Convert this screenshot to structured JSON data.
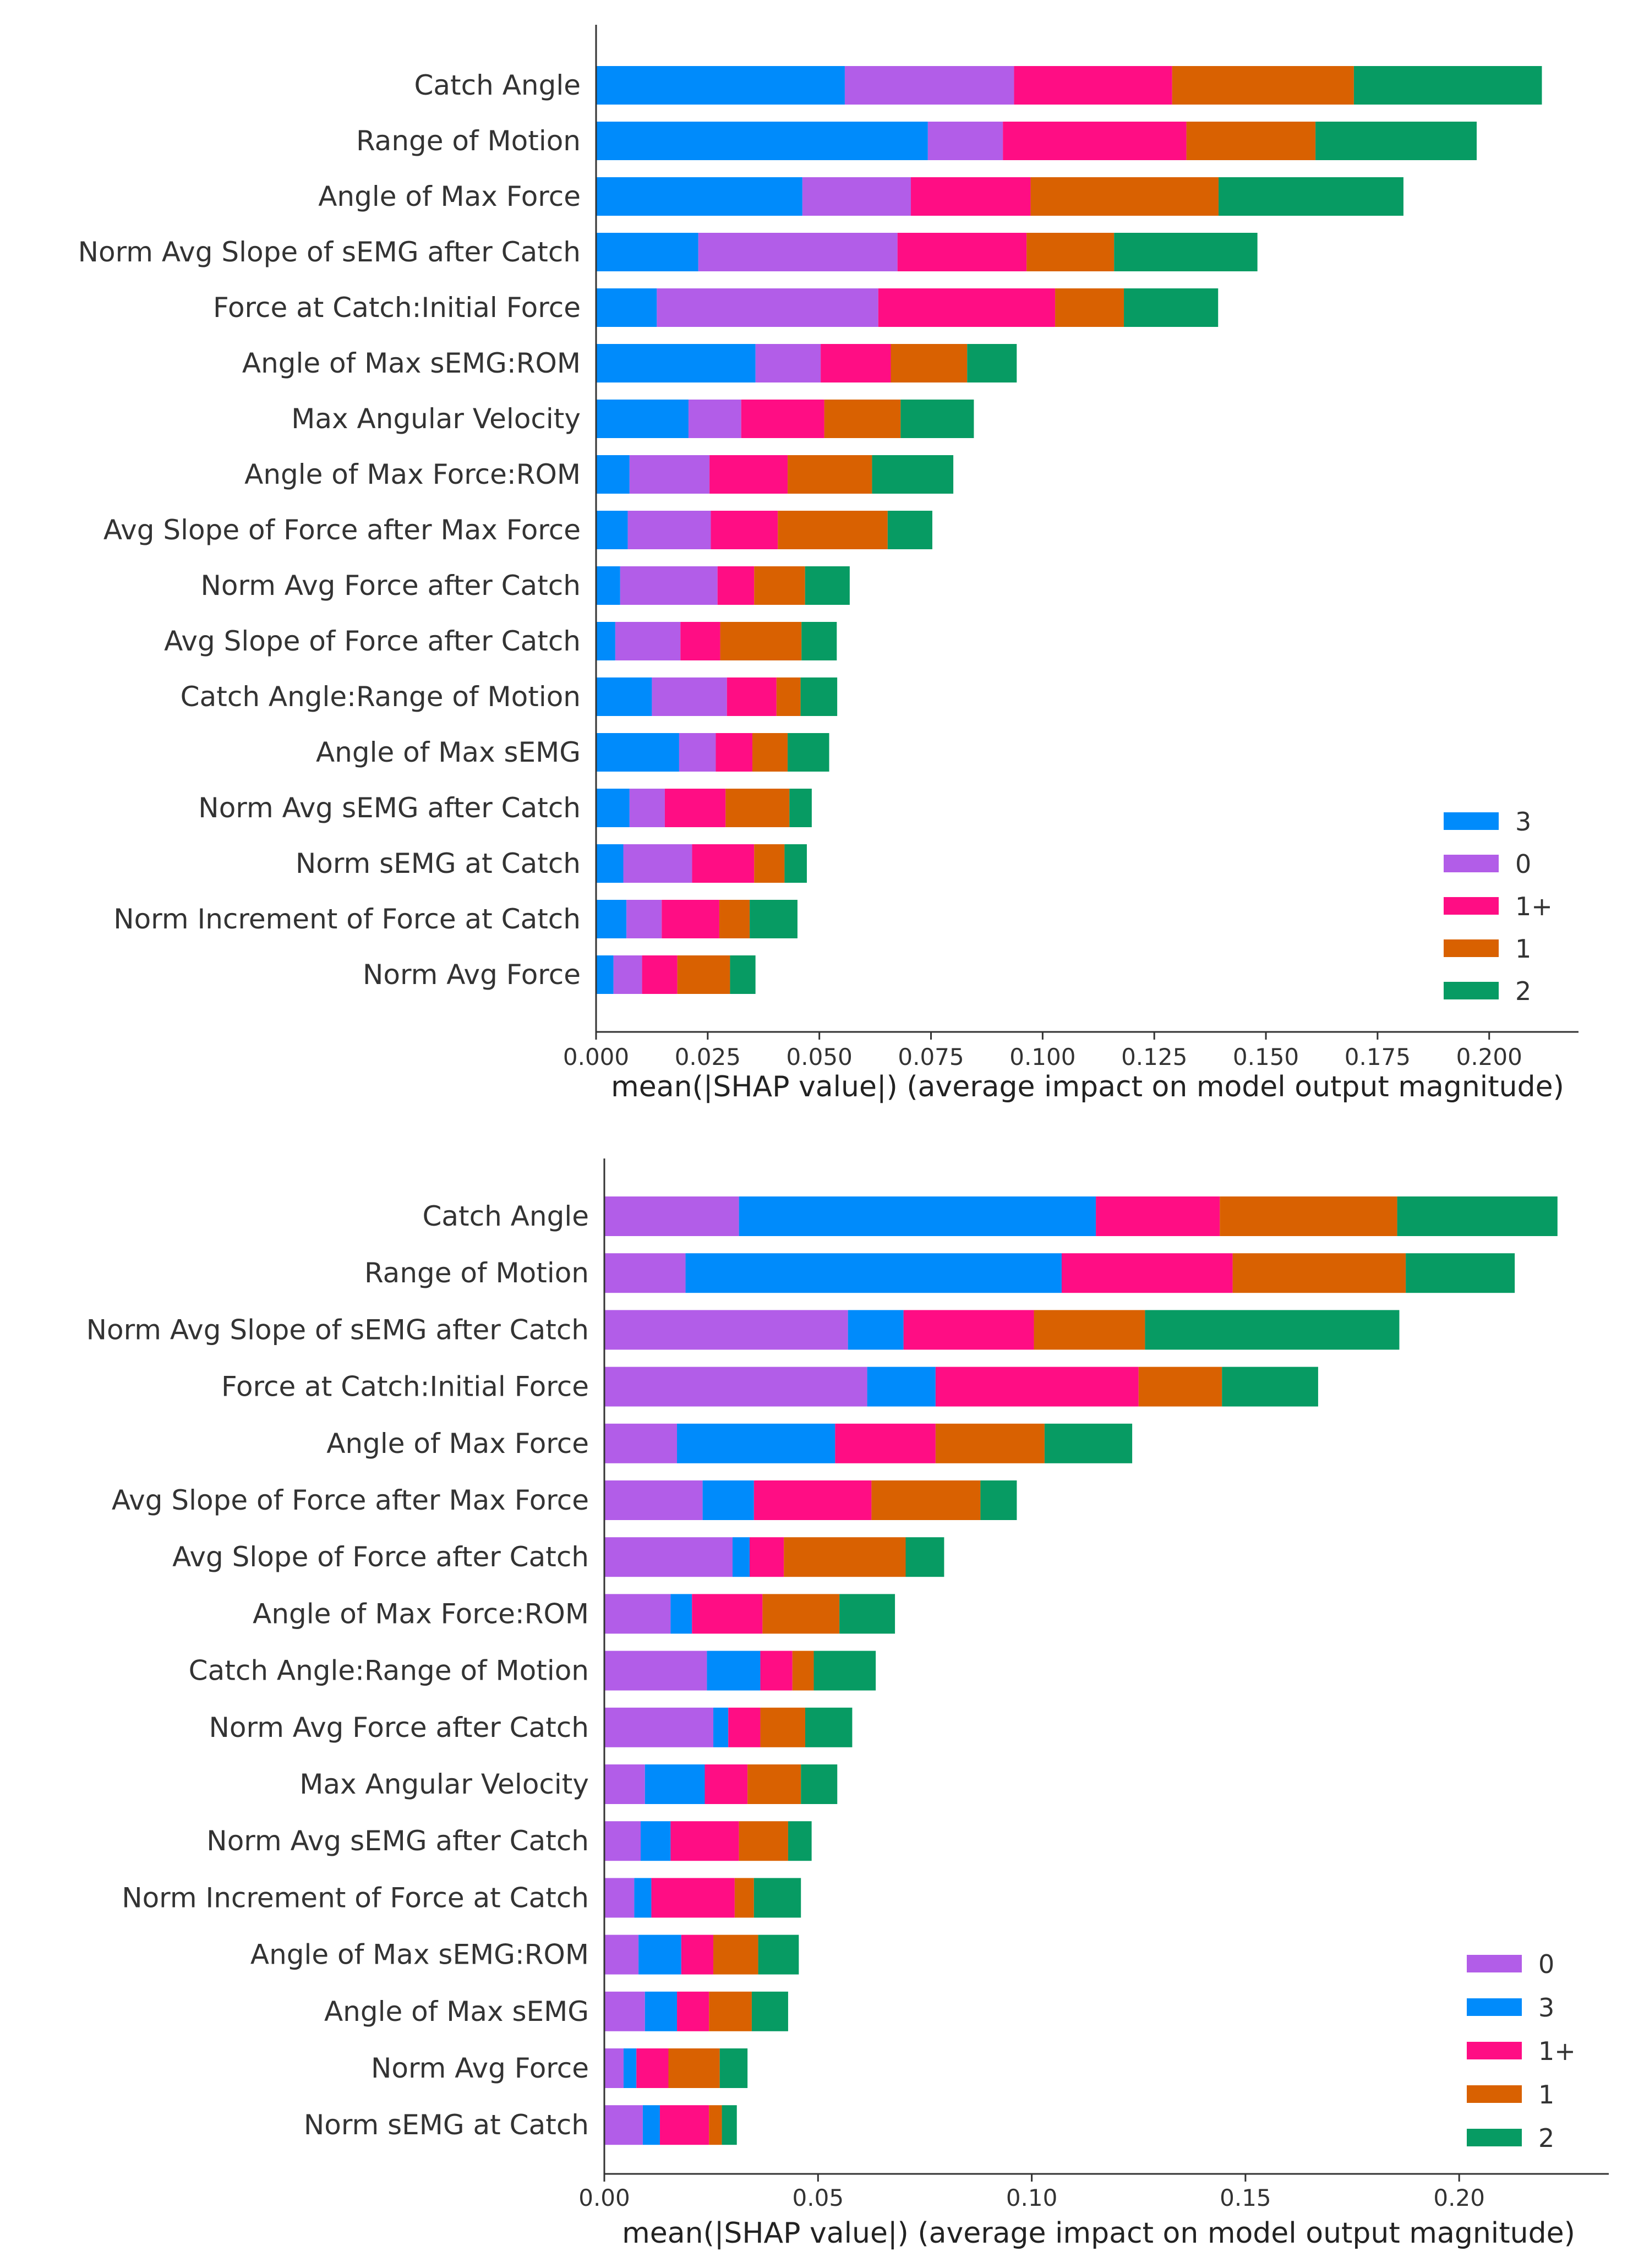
{
  "colors": {
    "3": "#008bfb",
    "0": "#b25de8",
    "1+": "#ff0d84",
    "1": "#d96101",
    "2": "#079b63"
  },
  "chart_data": [
    {
      "type": "bar",
      "orientation": "horizontal",
      "stacked": true,
      "title": "",
      "xlabel": "mean(|SHAP value|) (average impact on model output magnitude)",
      "ylabel": "",
      "xlim": [
        0,
        0.22
      ],
      "xticks": [
        0.0,
        0.025,
        0.05,
        0.075,
        0.1,
        0.125,
        0.15,
        0.175,
        0.2
      ],
      "xtick_labels": [
        "0.000",
        "0.025",
        "0.050",
        "0.075",
        "0.100",
        "0.125",
        "0.150",
        "0.175",
        "0.200"
      ],
      "legend_position": "lower-right",
      "legend": [
        "3",
        "0",
        "1+",
        "1",
        "2"
      ],
      "categories": [
        "Catch Angle",
        "Range of Motion",
        "Angle of Max Force",
        "Norm Avg Slope of sEMG after Catch",
        "Force at Catch:Initial Force",
        "Angle of Max sEMG:ROM",
        "Max Angular Velocity",
        "Angle of Max Force:ROM",
        "Avg Slope of Force after Max Force",
        "Norm Avg Force after Catch",
        "Avg Slope of Force after Catch",
        "Catch Angle:Range of Motion",
        "Angle of Max sEMG",
        "Norm Avg sEMG after Catch",
        "Norm sEMG at Catch",
        "Norm Increment of Force at Catch",
        "Norm Avg Force"
      ],
      "series": [
        {
          "name": "3",
          "values": [
            0.0557,
            0.0743,
            0.0462,
            0.0229,
            0.0136,
            0.0357,
            0.0207,
            0.0075,
            0.0071,
            0.0054,
            0.0043,
            0.0125,
            0.0186,
            0.0075,
            0.0061,
            0.0068,
            0.0039
          ]
        },
        {
          "name": "0",
          "values": [
            0.0379,
            0.0168,
            0.0243,
            0.0446,
            0.0496,
            0.0146,
            0.0118,
            0.0179,
            0.0186,
            0.0218,
            0.0146,
            0.0168,
            0.0082,
            0.0079,
            0.0154,
            0.0079,
            0.0064
          ]
        },
        {
          "name": "1+",
          "values": [
            0.0354,
            0.0411,
            0.0268,
            0.0289,
            0.0396,
            0.0157,
            0.0186,
            0.0175,
            0.015,
            0.0082,
            0.0089,
            0.0111,
            0.0082,
            0.0136,
            0.0139,
            0.0129,
            0.0079
          ]
        },
        {
          "name": "1",
          "values": [
            0.0407,
            0.0289,
            0.0421,
            0.0196,
            0.0154,
            0.0171,
            0.0171,
            0.0189,
            0.0246,
            0.0114,
            0.0182,
            0.0054,
            0.0079,
            0.0143,
            0.0068,
            0.0068,
            0.0118
          ]
        },
        {
          "name": "2",
          "values": [
            0.0421,
            0.0361,
            0.0414,
            0.0321,
            0.0211,
            0.0111,
            0.0164,
            0.0182,
            0.01,
            0.01,
            0.0079,
            0.0082,
            0.0093,
            0.005,
            0.005,
            0.0107,
            0.0057
          ]
        }
      ]
    },
    {
      "type": "bar",
      "orientation": "horizontal",
      "stacked": true,
      "title": "",
      "xlabel": "mean(|SHAP value|) (average impact on model output magnitude)",
      "ylabel": "",
      "xlim": [
        0,
        0.235
      ],
      "xticks": [
        0.0,
        0.05,
        0.1,
        0.15,
        0.2
      ],
      "xtick_labels": [
        "0.00",
        "0.05",
        "0.10",
        "0.15",
        "0.20"
      ],
      "legend_position": "lower-right",
      "legend": [
        "0",
        "3",
        "1+",
        "1",
        "2"
      ],
      "categories": [
        "Catch Angle",
        "Range of Motion",
        "Norm Avg Slope of sEMG after Catch",
        "Force at Catch:Initial Force",
        "Angle of Max Force",
        "Avg Slope of Force after Max Force",
        "Avg Slope of Force after Catch",
        "Angle of Max Force:ROM",
        "Catch Angle:Range of Motion",
        "Norm Avg Force after Catch",
        "Max Angular Velocity",
        "Norm Avg sEMG after Catch",
        "Norm Increment of Force at Catch",
        "Angle of Max sEMG:ROM",
        "Angle of Max sEMG",
        "Norm Avg Force",
        "Norm sEMG at Catch"
      ],
      "series": [
        {
          "name": "0",
          "values": [
            0.0315,
            0.019,
            0.057,
            0.0615,
            0.017,
            0.023,
            0.03,
            0.0155,
            0.024,
            0.0255,
            0.0095,
            0.0085,
            0.007,
            0.008,
            0.0095,
            0.0045,
            0.009
          ]
        },
        {
          "name": "3",
          "values": [
            0.0835,
            0.088,
            0.013,
            0.016,
            0.037,
            0.012,
            0.004,
            0.005,
            0.0125,
            0.0035,
            0.014,
            0.007,
            0.004,
            0.01,
            0.0075,
            0.003,
            0.004
          ]
        },
        {
          "name": "1+",
          "values": [
            0.029,
            0.04,
            0.0305,
            0.0475,
            0.0235,
            0.0275,
            0.008,
            0.0165,
            0.0075,
            0.0075,
            0.01,
            0.016,
            0.0195,
            0.0075,
            0.0075,
            0.0075,
            0.0115
          ]
        },
        {
          "name": "1",
          "values": [
            0.0415,
            0.0405,
            0.026,
            0.0195,
            0.0255,
            0.0255,
            0.0285,
            0.018,
            0.005,
            0.0105,
            0.0125,
            0.0115,
            0.0045,
            0.0105,
            0.01,
            0.012,
            0.003
          ]
        },
        {
          "name": "2",
          "values": [
            0.0375,
            0.0255,
            0.0595,
            0.0225,
            0.0205,
            0.0085,
            0.009,
            0.013,
            0.0145,
            0.011,
            0.0085,
            0.0055,
            0.011,
            0.0095,
            0.0085,
            0.0065,
            0.0035
          ]
        }
      ]
    }
  ]
}
